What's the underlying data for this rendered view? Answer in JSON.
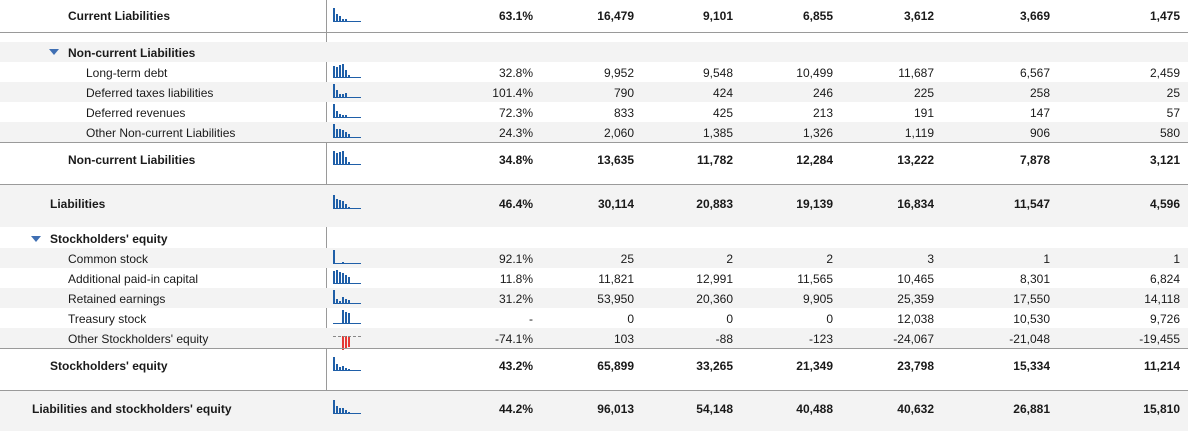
{
  "table": {
    "rows": [
      {
        "label": "Current Liabilities",
        "pct": "63.1%",
        "values": [
          "16,479",
          "9,101",
          "6,855",
          "3,612",
          "3,669",
          "1,475"
        ],
        "spark": [
          1,
          0.55,
          0.42,
          0.22,
          0.22,
          0.09
        ],
        "neg": false
      },
      {
        "label": "Non-current Liabilities",
        "group": true
      },
      {
        "label": "Long-term debt",
        "pct": "32.8%",
        "values": [
          "9,952",
          "9,548",
          "10,499",
          "11,687",
          "6,567",
          "2,459"
        ],
        "spark": [
          0.85,
          0.82,
          0.9,
          1,
          0.56,
          0.21
        ],
        "neg": false
      },
      {
        "label": "Deferred taxes liabilities",
        "pct": "101.4%",
        "values": [
          "790",
          "424",
          "246",
          "225",
          "258",
          "25"
        ],
        "spark": [
          1,
          0.54,
          0.31,
          0.28,
          0.33,
          0.03
        ],
        "neg": false
      },
      {
        "label": "Deferred revenues",
        "pct": "72.3%",
        "values": [
          "833",
          "425",
          "213",
          "191",
          "147",
          "57"
        ],
        "spark": [
          1,
          0.51,
          0.26,
          0.23,
          0.18,
          0.07
        ],
        "neg": false
      },
      {
        "label": "Other Non-current Liabilities",
        "pct": "24.3%",
        "values": [
          "2,060",
          "1,385",
          "1,326",
          "1,119",
          "906",
          "580"
        ],
        "spark": [
          1,
          0.67,
          0.64,
          0.54,
          0.44,
          0.28
        ],
        "neg": false
      },
      {
        "label": "Non-current Liabilities",
        "pct": "34.8%",
        "values": [
          "13,635",
          "11,782",
          "12,284",
          "13,222",
          "7,878",
          "3,121"
        ],
        "spark": [
          1,
          0.86,
          0.9,
          0.97,
          0.58,
          0.23
        ],
        "neg": false
      },
      {
        "label": "Liabilities",
        "pct": "46.4%",
        "values": [
          "30,114",
          "20,883",
          "19,139",
          "16,834",
          "11,547",
          "4,596"
        ],
        "spark": [
          1,
          0.69,
          0.64,
          0.56,
          0.38,
          0.15
        ],
        "neg": false
      },
      {
        "label": "Stockholders' equity",
        "group": true
      },
      {
        "label": "Common stock",
        "pct": "92.1%",
        "values": [
          "25",
          "2",
          "2",
          "3",
          "1",
          "1"
        ],
        "spark": [
          1,
          0.08,
          0.08,
          0.12,
          0.04,
          0.04
        ],
        "neg": false
      },
      {
        "label": "Additional paid-in capital",
        "pct": "11.8%",
        "values": [
          "11,821",
          "12,991",
          "11,565",
          "10,465",
          "8,301",
          "6,824"
        ],
        "spark": [
          0.91,
          1,
          0.89,
          0.81,
          0.64,
          0.53
        ],
        "neg": false
      },
      {
        "label": "Retained earnings",
        "pct": "31.2%",
        "values": [
          "53,950",
          "20,360",
          "9,905",
          "25,359",
          "17,550",
          "14,118"
        ],
        "spark": [
          1,
          0.38,
          0.18,
          0.47,
          0.33,
          0.26
        ],
        "neg": false
      },
      {
        "label": "Treasury stock",
        "pct": "-",
        "values": [
          "0",
          "0",
          "0",
          "12,038",
          "10,530",
          "9,726"
        ],
        "spark": [
          0,
          0,
          0,
          1,
          0.87,
          0.81
        ],
        "neg": false
      },
      {
        "label": "Other Stockholders' equity",
        "pct": "-74.1%",
        "values": [
          "103",
          "-88",
          "-123",
          "-24,067",
          "-21,048",
          "-19,455"
        ],
        "spark": [
          0,
          0,
          0,
          1,
          0.87,
          0.81
        ],
        "neg": true
      },
      {
        "label": "Stockholders' equity",
        "pct": "43.2%",
        "values": [
          "65,899",
          "33,265",
          "21,349",
          "23,798",
          "15,334",
          "11,214"
        ],
        "spark": [
          1,
          0.5,
          0.32,
          0.36,
          0.23,
          0.17
        ],
        "neg": false
      },
      {
        "label": "Liabilities and stockholders' equity",
        "pct": "44.2%",
        "values": [
          "96,013",
          "54,148",
          "40,488",
          "40,632",
          "26,881",
          "15,810"
        ],
        "spark": [
          1,
          0.56,
          0.42,
          0.42,
          0.28,
          0.16
        ],
        "neg": false
      }
    ]
  },
  "colors": {
    "positive_bar": "#1f5fa8",
    "negative_bar": "#e53935",
    "group_triangle": "#3f6fb3"
  }
}
